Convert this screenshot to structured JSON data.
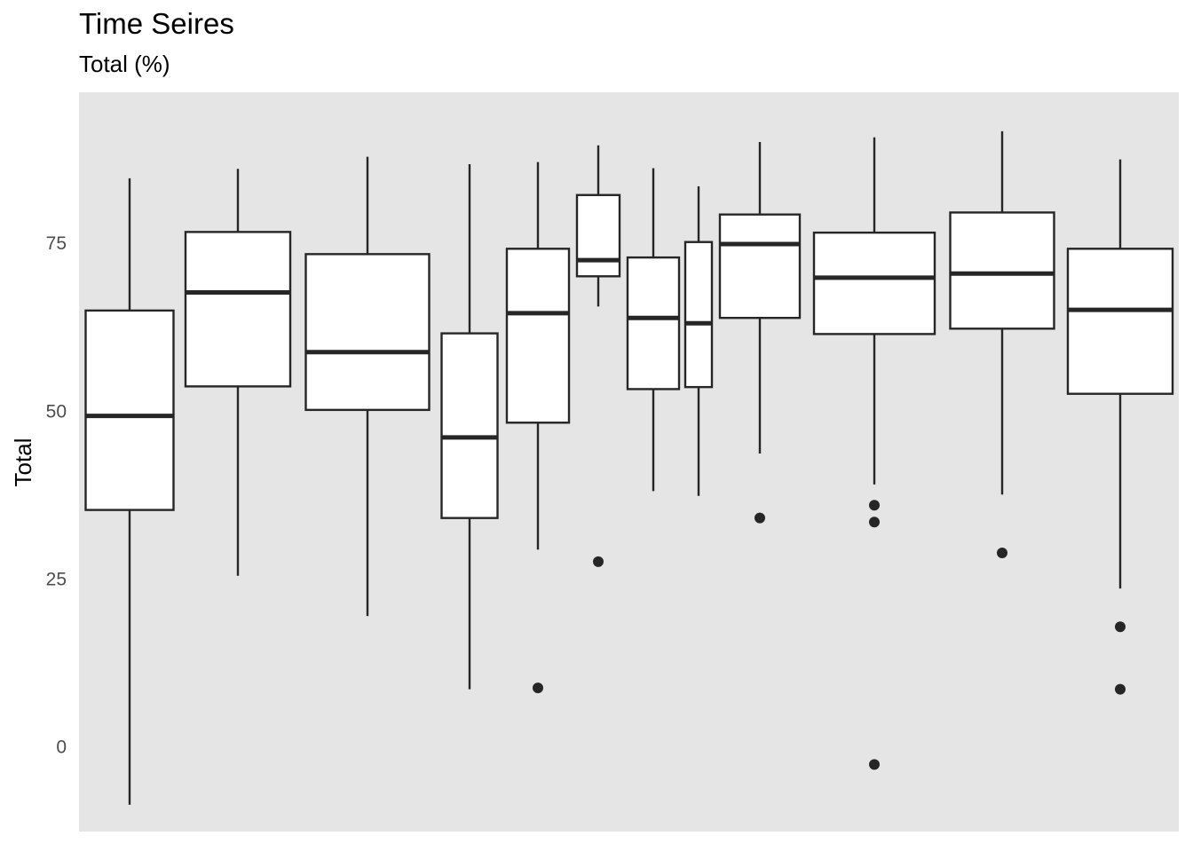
{
  "chart_data": {
    "type": "box",
    "title": "Time Seires",
    "subtitle": "Total (%)",
    "xlabel": "",
    "ylabel": "Total",
    "ylim": [
      -12.6,
      97.5
    ],
    "yticks": [
      0,
      25,
      50,
      75
    ],
    "grid": false,
    "panel_color": "#e5e5e5",
    "box_fill": "#ffffff",
    "line_color": "#262626",
    "boxes": [
      {
        "lower_whisker": -8.6,
        "q1": 35.3,
        "median": 49.3,
        "q3": 65.0,
        "upper_whisker": 84.7,
        "outliers": []
      },
      {
        "lower_whisker": 25.5,
        "q1": 53.7,
        "median": 67.7,
        "q3": 76.7,
        "upper_whisker": 86.1,
        "outliers": []
      },
      {
        "lower_whisker": 19.5,
        "q1": 50.2,
        "median": 58.8,
        "q3": 73.4,
        "upper_whisker": 87.9,
        "outliers": []
      },
      {
        "lower_whisker": 8.6,
        "q1": 34.1,
        "median": 46.1,
        "q3": 61.6,
        "upper_whisker": 86.8,
        "outliers": []
      },
      {
        "lower_whisker": 29.4,
        "q1": 48.3,
        "median": 64.6,
        "q3": 74.2,
        "upper_whisker": 87.1,
        "outliers": [
          8.8
        ]
      },
      {
        "lower_whisker": 65.6,
        "q1": 70.1,
        "median": 72.5,
        "q3": 82.2,
        "upper_whisker": 89.6,
        "outliers": [
          27.6
        ]
      },
      {
        "lower_whisker": 38.1,
        "q1": 53.3,
        "median": 63.9,
        "q3": 72.9,
        "upper_whisker": 86.2,
        "outliers": []
      },
      {
        "lower_whisker": 37.4,
        "q1": 53.6,
        "median": 63.1,
        "q3": 75.2,
        "upper_whisker": 83.5,
        "outliers": []
      },
      {
        "lower_whisker": 43.7,
        "q1": 63.9,
        "median": 74.9,
        "q3": 79.3,
        "upper_whisker": 90.1,
        "outliers": [
          34.1
        ]
      },
      {
        "lower_whisker": 39.1,
        "q1": 61.5,
        "median": 69.9,
        "q3": 76.6,
        "upper_whisker": 90.8,
        "outliers": [
          36.0,
          33.5,
          -2.6
        ]
      },
      {
        "lower_whisker": 37.6,
        "q1": 62.3,
        "median": 70.5,
        "q3": 79.6,
        "upper_whisker": 91.7,
        "outliers": [
          28.9
        ]
      },
      {
        "lower_whisker": 23.6,
        "q1": 52.6,
        "median": 65.1,
        "q3": 74.2,
        "upper_whisker": 87.5,
        "outliers": [
          17.9,
          8.6
        ]
      }
    ]
  }
}
